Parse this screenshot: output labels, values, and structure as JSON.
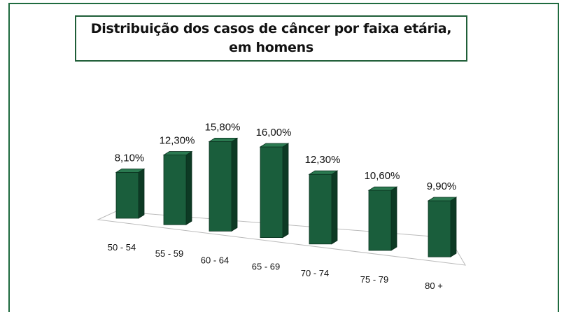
{
  "chart_data": {
    "type": "bar3d",
    "title": "Distribuição dos casos de câncer por faixa etária, em homens",
    "categories": [
      "50 - 54",
      "55 - 59",
      "60 - 64",
      "65 - 69",
      "70 - 74",
      "75 - 79",
      "80 +"
    ],
    "values": [
      8.1,
      12.3,
      15.8,
      16.0,
      12.3,
      10.6,
      9.9
    ],
    "value_labels": [
      "8,10%",
      "12,30%",
      "15,80%",
      "16,00%",
      "12,30%",
      "10,60%",
      "9,90%"
    ],
    "color": "#1a5e3c"
  }
}
